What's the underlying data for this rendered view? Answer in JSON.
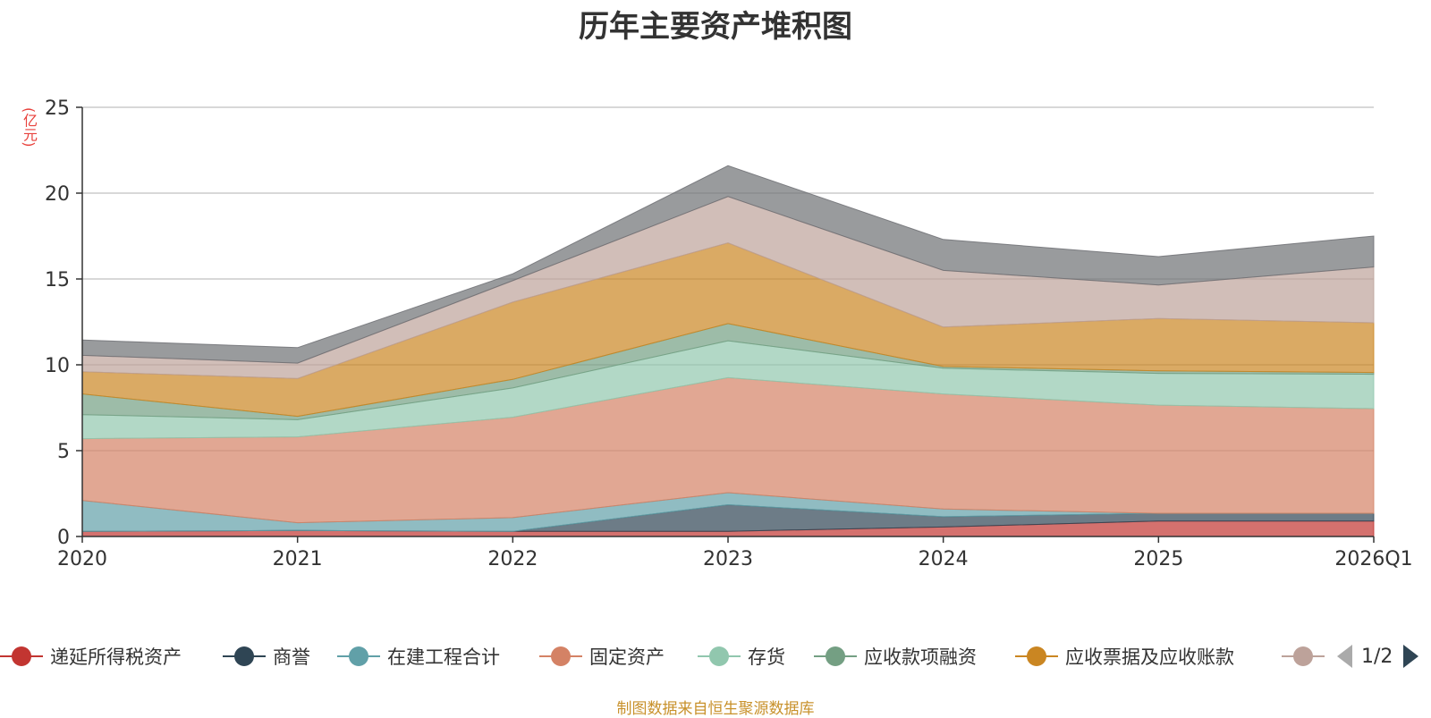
{
  "title": "历年主要资产堆积图",
  "unit_label": "(亿元)",
  "source_text": "制图数据来自恒生聚源数据库",
  "legend": {
    "items": [
      {
        "label": "递延所得税资产",
        "color": "#c23531"
      },
      {
        "label": "商誉",
        "color": "#2f4554"
      },
      {
        "label": "在建工程合计",
        "color": "#61a0a8"
      },
      {
        "label": "固定资产",
        "color": "#d48265"
      },
      {
        "label": "存货",
        "color": "#91c7ae"
      },
      {
        "label": "应收款项融资",
        "color": "#749f83"
      },
      {
        "label": "应收票据及应收账款",
        "color": "#ca8622"
      },
      {
        "label": "",
        "color": "#bda29a"
      }
    ],
    "page_text": "1/2"
  },
  "chart_data": {
    "type": "area",
    "stacked": true,
    "x": [
      "2020",
      "2021",
      "2022",
      "2023",
      "2024",
      "2025",
      "2026Q1"
    ],
    "ylim": [
      0,
      25
    ],
    "yticks": [
      0,
      5,
      10,
      15,
      20,
      25
    ],
    "ylabel": "(亿元)",
    "grid": true,
    "series": [
      {
        "name": "递延所得税资产",
        "color": "#c23531",
        "values": [
          0.3,
          0.35,
          0.3,
          0.3,
          0.55,
          0.9,
          0.9
        ]
      },
      {
        "name": "商誉",
        "color": "#2f4554",
        "values": [
          0.0,
          0.0,
          0.0,
          1.55,
          0.6,
          0.45,
          0.45
        ]
      },
      {
        "name": "在建工程合计",
        "color": "#61a0a8",
        "values": [
          1.8,
          0.45,
          0.8,
          0.7,
          0.45,
          0.0,
          0.0
        ]
      },
      {
        "name": "固定资产",
        "color": "#d48265",
        "values": [
          3.6,
          5.0,
          5.85,
          6.7,
          6.7,
          6.3,
          6.1
        ]
      },
      {
        "name": "存货",
        "color": "#91c7ae",
        "values": [
          1.4,
          1.0,
          1.7,
          2.15,
          1.5,
          1.85,
          2.0
        ]
      },
      {
        "name": "应收款项融资",
        "color": "#749f83",
        "values": [
          1.2,
          0.2,
          0.5,
          1.0,
          0.1,
          0.15,
          0.1
        ]
      },
      {
        "name": "应收票据及应收账款",
        "color": "#ca8622",
        "values": [
          1.3,
          2.2,
          4.5,
          4.7,
          2.3,
          3.05,
          2.9
        ]
      },
      {
        "name": "",
        "color": "#bda29a",
        "values": [
          0.95,
          0.9,
          1.25,
          2.7,
          3.3,
          1.95,
          3.25
        ]
      },
      {
        "name": "",
        "color": "#6e7074",
        "values": [
          0.9,
          0.9,
          0.4,
          1.8,
          1.8,
          1.65,
          1.8
        ]
      }
    ]
  }
}
